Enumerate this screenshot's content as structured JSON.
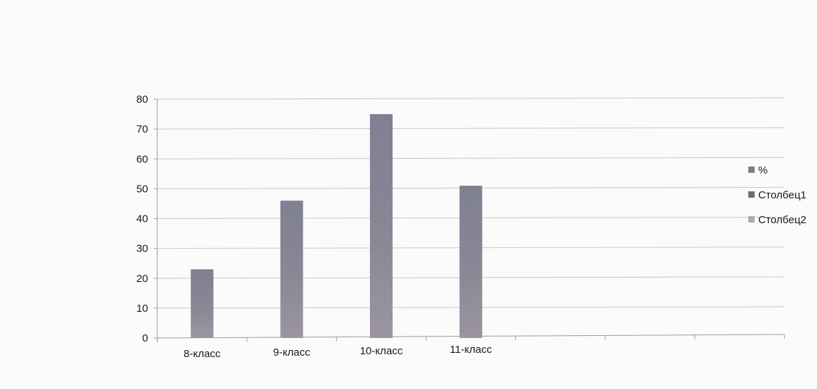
{
  "chart_data": {
    "type": "bar",
    "title": "",
    "xlabel": "",
    "ylabel": "",
    "categories": [
      "8-класс",
      "9-класс",
      "10-класс",
      "11-класс",
      "",
      "",
      ""
    ],
    "series": [
      {
        "name": "%",
        "values": [
          23,
          46,
          75,
          51,
          null,
          null,
          null
        ],
        "color": "#7b7f8e"
      },
      {
        "name": "Столбец1",
        "values": [
          null,
          null,
          null,
          null,
          null,
          null,
          null
        ],
        "color": "#6f6f73"
      },
      {
        "name": "Столбец2",
        "values": [
          null,
          null,
          null,
          null,
          null,
          null,
          null
        ],
        "color": "#b4aaa4"
      }
    ],
    "ylim": [
      0,
      80
    ],
    "yticks": [
      0,
      10,
      20,
      30,
      40,
      50,
      60,
      70,
      80
    ],
    "grid": true,
    "legend_position": "right"
  }
}
